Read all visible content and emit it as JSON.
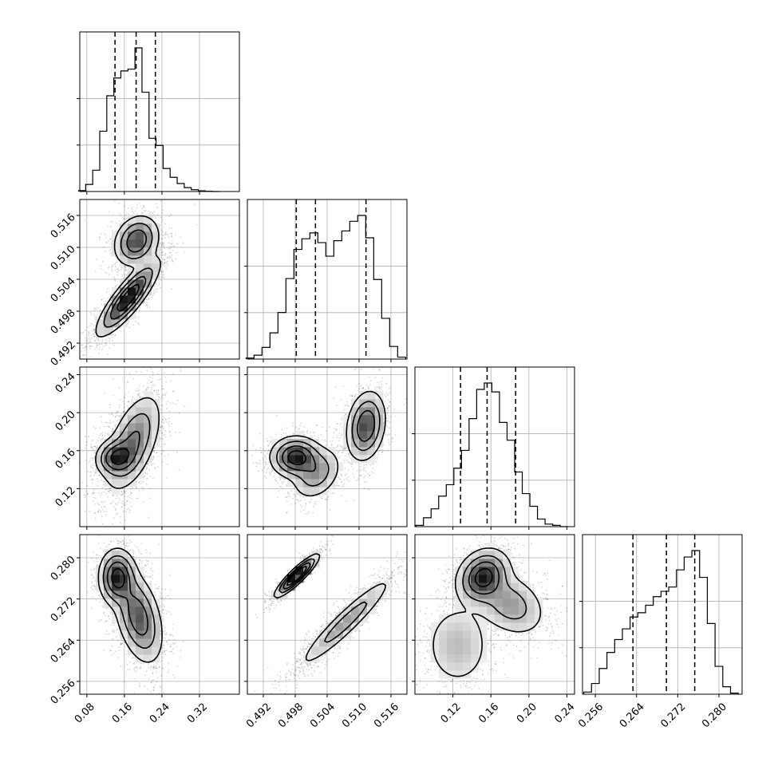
{
  "chart_data": {
    "type": "corner",
    "ndim": 4,
    "grid": true,
    "style": {
      "hist_color": "#000000",
      "quantile_line_color": "#000000",
      "contour_color": "#000000",
      "density_colormap": "greys",
      "grid_color": "#b0b0b0"
    },
    "parameters": [
      {
        "range": [
          0.065,
          0.405
        ],
        "ticks": [
          "0.08",
          "0.16",
          "0.24",
          "0.32"
        ],
        "quantiles": [
          0.14,
          0.185,
          0.226
        ],
        "hist_x": [
          0.07,
          0.085,
          0.1,
          0.115,
          0.13,
          0.145,
          0.16,
          0.175,
          0.19,
          0.205,
          0.22,
          0.235,
          0.25,
          0.265,
          0.28,
          0.295,
          0.31,
          0.325,
          0.34,
          0.355
        ],
        "hist": [
          0.05,
          0.4,
          1.2,
          3.4,
          5.4,
          6.4,
          6.8,
          6.9,
          8.1,
          5.6,
          3.0,
          2.6,
          1.3,
          0.8,
          0.45,
          0.22,
          0.1,
          0.04,
          0.01,
          0
        ]
      },
      {
        "range": [
          0.489,
          0.519
        ],
        "ticks": [
          "0.492",
          "0.498",
          "0.504",
          "0.510",
          "0.516"
        ],
        "quantiles": [
          0.4982,
          0.5018,
          0.5113
        ],
        "hist_x": [
          0.4895,
          0.491,
          0.4925,
          0.494,
          0.4955,
          0.497,
          0.4985,
          0.5,
          0.5015,
          0.503,
          0.5045,
          0.506,
          0.5075,
          0.509,
          0.5105,
          0.512,
          0.5135,
          0.515,
          0.5165,
          0.518
        ],
        "hist": [
          0.1,
          0.4,
          1.2,
          2.7,
          4.8,
          8.3,
          11.3,
          12.4,
          13.0,
          12.0,
          10.6,
          12.2,
          13.2,
          14.2,
          14.8,
          12.5,
          8.2,
          4.2,
          1.3,
          0.2
        ],
        "hist_note": "bimodal"
      },
      {
        "range": [
          0.08,
          0.248
        ],
        "ticks": [
          "0.12",
          "0.16",
          "0.20",
          "0.24"
        ],
        "quantiles": [
          0.128,
          0.156,
          0.186
        ],
        "hist_x": [
          0.085,
          0.093,
          0.101,
          0.109,
          0.117,
          0.125,
          0.133,
          0.141,
          0.149,
          0.157,
          0.165,
          0.173,
          0.181,
          0.189,
          0.197,
          0.205,
          0.213,
          0.221,
          0.229,
          0.237
        ],
        "hist": [
          0.1,
          0.7,
          1.4,
          2.4,
          3.3,
          4.6,
          6.0,
          8.5,
          10.8,
          11.3,
          10.6,
          8.2,
          6.8,
          4.3,
          2.6,
          1.6,
          0.6,
          0.2,
          0.1,
          0
        ]
      },
      {
        "range": [
          0.2535,
          0.2845
        ],
        "ticks": [
          "0.256",
          "0.264",
          "0.272",
          "0.280"
        ],
        "quantiles": [
          0.2633,
          0.2698,
          0.2753
        ],
        "hist_x": [
          0.2545,
          0.256,
          0.2575,
          0.259,
          0.2605,
          0.262,
          0.2635,
          0.265,
          0.2665,
          0.268,
          0.2695,
          0.271,
          0.2725,
          0.274,
          0.2755,
          0.277,
          0.2785,
          0.28,
          0.2815,
          0.283
        ],
        "hist": [
          0.2,
          1.0,
          2.4,
          3.9,
          5.1,
          6.1,
          7.2,
          7.6,
          8.3,
          9.1,
          9.6,
          10.0,
          11.6,
          12.8,
          13.4,
          10.9,
          6.6,
          2.6,
          0.7,
          0.1
        ]
      }
    ],
    "pairs": [
      {
        "x": 0,
        "y": 1,
        "modes": [
          {
            "cx": 0.186,
            "cy": 0.5112,
            "sx": 0.022,
            "sy": 0.0022,
            "rho": 0.2,
            "w": 0.4
          },
          {
            "cx": 0.168,
            "cy": 0.5005,
            "sx": 0.03,
            "sy": 0.0032,
            "rho": 0.85,
            "w": 0.6
          }
        ]
      },
      {
        "x": 0,
        "y": 2,
        "modes": [
          {
            "cx": 0.142,
            "cy": 0.153,
            "sx": 0.02,
            "sy": 0.009,
            "rho": 0.1,
            "w": 0.3
          },
          {
            "cx": 0.178,
            "cy": 0.168,
            "sx": 0.028,
            "sy": 0.024,
            "rho": 0.55,
            "w": 0.7
          }
        ]
      },
      {
        "x": 1,
        "y": 2,
        "modes": [
          {
            "cx": 0.4982,
            "cy": 0.153,
            "sx": 0.0022,
            "sy": 0.01,
            "rho": 0.0,
            "w": 0.4
          },
          {
            "cx": 0.502,
            "cy": 0.136,
            "sx": 0.0022,
            "sy": 0.013,
            "rho": 0.3,
            "w": 0.2
          },
          {
            "cx": 0.5113,
            "cy": 0.186,
            "sx": 0.0017,
            "sy": 0.017,
            "rho": 0.2,
            "w": 0.4
          }
        ]
      },
      {
        "x": 0,
        "y": 3,
        "modes": [
          {
            "cx": 0.145,
            "cy": 0.2762,
            "sx": 0.018,
            "sy": 0.0025,
            "rho": 0.0,
            "w": 0.4
          },
          {
            "cx": 0.19,
            "cy": 0.2685,
            "sx": 0.024,
            "sy": 0.0042,
            "rho": -0.4,
            "w": 0.6
          }
        ]
      },
      {
        "x": 1,
        "y": 3,
        "modes": [
          {
            "cx": 0.4983,
            "cy": 0.2765,
            "sx": 0.0018,
            "sy": 0.0018,
            "rho": 0.9,
            "w": 0.45
          },
          {
            "cx": 0.5075,
            "cy": 0.2675,
            "sx": 0.0042,
            "sy": 0.0042,
            "rho": 0.94,
            "w": 0.55
          }
        ]
      },
      {
        "x": 2,
        "y": 3,
        "modes": [
          {
            "cx": 0.152,
            "cy": 0.2763,
            "sx": 0.013,
            "sy": 0.0025,
            "rho": 0.2,
            "w": 0.45
          },
          {
            "cx": 0.125,
            "cy": 0.263,
            "sx": 0.017,
            "sy": 0.004,
            "rho": 0.0,
            "w": 0.25
          },
          {
            "cx": 0.18,
            "cy": 0.271,
            "sx": 0.018,
            "sy": 0.003,
            "rho": -0.3,
            "w": 0.3
          }
        ]
      }
    ]
  }
}
